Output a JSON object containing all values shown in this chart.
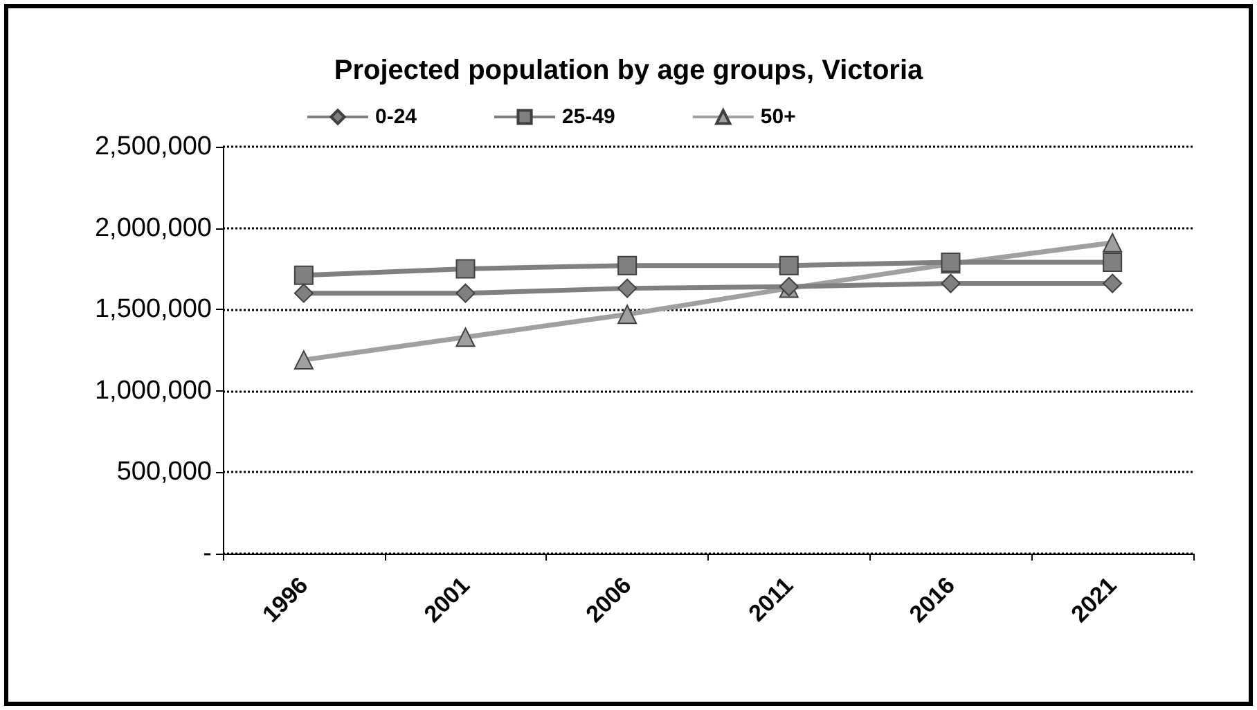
{
  "chart_data": {
    "type": "line",
    "title": "Projected population by age groups, Victoria",
    "categories": [
      "1996",
      "2001",
      "2006",
      "2011",
      "2016",
      "2021"
    ],
    "series": [
      {
        "name": "0-24",
        "color": "#808080",
        "marker": "diamond",
        "values": [
          1600000,
          1600000,
          1630000,
          1640000,
          1660000,
          1660000
        ]
      },
      {
        "name": "25-49",
        "color": "#808080",
        "marker": "square",
        "values": [
          1710000,
          1750000,
          1770000,
          1770000,
          1790000,
          1790000
        ]
      },
      {
        "name": "50+",
        "color": "#a0a0a0",
        "marker": "triangle",
        "values": [
          1190000,
          1330000,
          1470000,
          1630000,
          1780000,
          1910000
        ]
      }
    ],
    "ylim": [
      0,
      2500000
    ],
    "yticks": [
      {
        "value": 0,
        "label": "-"
      },
      {
        "value": 500000,
        "label": "500,000"
      },
      {
        "value": 1000000,
        "label": "1,000,000"
      },
      {
        "value": 1500000,
        "label": "1,500,000"
      },
      {
        "value": 2000000,
        "label": "2,000,000"
      },
      {
        "value": 2500000,
        "label": "2,500,000"
      }
    ],
    "grid": "y",
    "legend": "top",
    "line_style": "solid"
  }
}
